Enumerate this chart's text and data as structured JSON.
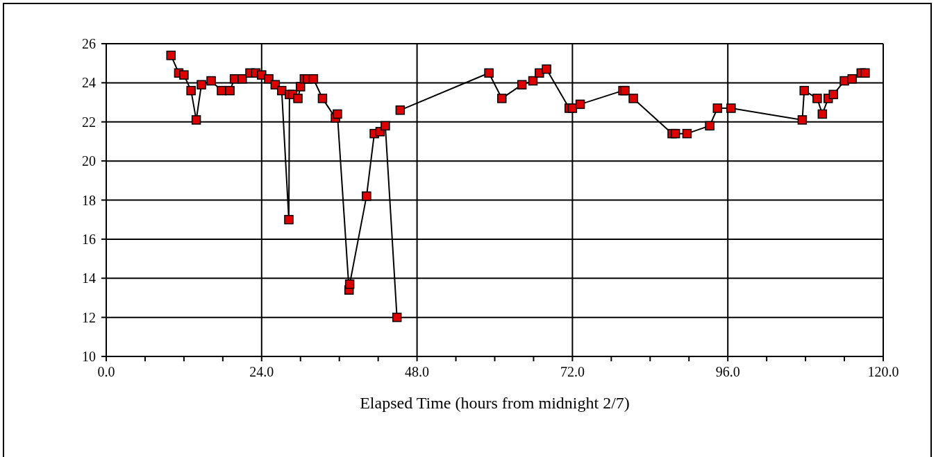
{
  "chart_data": {
    "type": "line",
    "xlabel": "Elapsed Time (hours from midnight 2/7)",
    "x": [
      10.0,
      11.2,
      12.0,
      13.1,
      13.9,
      14.7,
      16.2,
      17.8,
      19.1,
      19.8,
      21.0,
      22.2,
      23.1,
      24.0,
      25.1,
      26.1,
      27.1,
      28.2,
      28.3,
      28.8,
      29.6,
      30.0,
      30.6,
      31.1,
      32.0,
      33.4,
      35.4,
      35.7,
      37.5,
      37.6,
      40.2,
      41.4,
      42.3,
      43.1,
      44.9,
      45.3,
      45.4,
      59.1,
      61.1,
      64.2,
      65.9,
      66.9,
      68.0,
      71.5,
      72.0,
      73.2,
      79.8,
      80.1,
      81.4,
      87.4,
      87.9,
      89.7,
      93.2,
      94.4,
      96.5,
      107.5,
      107.8,
      109.8,
      110.6,
      111.5,
      112.3,
      114.0,
      115.2,
      116.6,
      117.2
    ],
    "series": [
      {
        "color": "#dd0000",
        "values": [
          25.4,
          24.5,
          24.4,
          23.6,
          22.1,
          23.9,
          24.1,
          23.6,
          23.6,
          24.2,
          24.2,
          24.5,
          24.5,
          24.4,
          24.2,
          23.9,
          23.6,
          17.0,
          23.4,
          23.4,
          23.2,
          23.8,
          24.2,
          24.2,
          24.2,
          23.2,
          22.2,
          22.4,
          13.4,
          13.7,
          18.2,
          21.4,
          21.5,
          21.8,
          12.0,
          null,
          22.6,
          24.5,
          23.2,
          23.9,
          24.1,
          24.5,
          24.7,
          22.7,
          22.7,
          22.9,
          23.6,
          23.6,
          23.2,
          21.4,
          21.4,
          21.4,
          21.8,
          22.7,
          22.7,
          22.1,
          23.6,
          23.2,
          22.4,
          23.2,
          23.4,
          24.1,
          24.2,
          24.5,
          24.5
        ]
      }
    ],
    "xlim": [
      0,
      120
    ],
    "xticks": [
      {
        "value": 0,
        "label": "0.0"
      },
      {
        "value": 6,
        "label": null
      },
      {
        "value": 12,
        "label": null
      },
      {
        "value": 18,
        "label": null
      },
      {
        "value": 24,
        "label": "24.0"
      },
      {
        "value": 30,
        "label": null
      },
      {
        "value": 36,
        "label": null
      },
      {
        "value": 42,
        "label": null
      },
      {
        "value": 48,
        "label": "48.0"
      },
      {
        "value": 54,
        "label": null
      },
      {
        "value": 60,
        "label": null
      },
      {
        "value": 66,
        "label": null
      },
      {
        "value": 72,
        "label": "72.0"
      },
      {
        "value": 78,
        "label": null
      },
      {
        "value": 84,
        "label": null
      },
      {
        "value": 90,
        "label": null
      },
      {
        "value": 96,
        "label": "96.0"
      },
      {
        "value": 102,
        "label": null
      },
      {
        "value": 108,
        "label": null
      },
      {
        "value": 114,
        "label": null
      },
      {
        "value": 120,
        "label": "120.0"
      }
    ],
    "ylim": [
      10,
      26
    ],
    "yticks": [
      10,
      12,
      14,
      16,
      18,
      20,
      22,
      24,
      26
    ],
    "grid": true,
    "marker": "square",
    "line_style": "solid"
  }
}
